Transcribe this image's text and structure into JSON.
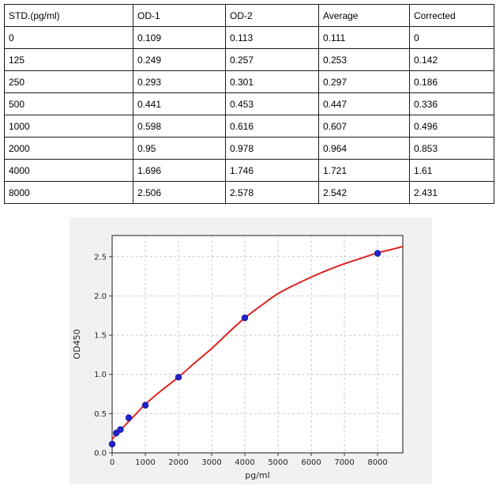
{
  "table": {
    "headers": [
      "STD.(pg/ml)",
      "OD-1",
      "OD-2",
      "Average",
      "Corrected"
    ],
    "rows": [
      [
        "0",
        "0.109",
        "0.113",
        "0.111",
        "0"
      ],
      [
        "125",
        "0.249",
        "0.257",
        "0.253",
        "0.142"
      ],
      [
        "250",
        "0.293",
        "0.301",
        "0.297",
        "0.186"
      ],
      [
        "500",
        "0.441",
        "0.453",
        "0.447",
        "0.336"
      ],
      [
        "1000",
        "0.598",
        "0.616",
        "0.607",
        "0.496"
      ],
      [
        "2000",
        "0.95",
        "0.978",
        "0.964",
        "0.853"
      ],
      [
        "4000",
        "1.696",
        "1.746",
        "1.721",
        "1.61"
      ],
      [
        "8000",
        "2.506",
        "2.578",
        "2.542",
        "2.431"
      ]
    ]
  },
  "chart_data": {
    "type": "scatter",
    "title": "",
    "xlabel": "pg/ml",
    "ylabel": "OD450",
    "xlim": [
      0,
      8760
    ],
    "ylim": [
      0,
      2.77
    ],
    "x_ticks": [
      0,
      1000,
      2000,
      3000,
      4000,
      5000,
      6000,
      7000,
      8000
    ],
    "x_tick_labels": [
      "0",
      "1000",
      "2000",
      "3000",
      "4000",
      "5000",
      "6000",
      "7000",
      "8000"
    ],
    "y_ticks": [
      0,
      0.5,
      1.0,
      1.5,
      2.0,
      2.5
    ],
    "y_tick_labels": [
      "0.0",
      "0.5",
      "1.0",
      "1.5",
      "2.0",
      "2.5"
    ],
    "grid": true,
    "legend": "none",
    "series": [
      {
        "name": "standard-points",
        "type": "scatter",
        "x": [
          0,
          125,
          250,
          500,
          1000,
          2000,
          4000,
          8000
        ],
        "y": [
          0.111,
          0.253,
          0.297,
          0.447,
          0.607,
          0.964,
          1.721,
          2.542
        ]
      },
      {
        "name": "fit-curve",
        "type": "line",
        "x": [
          0,
          250,
          500,
          750,
          1000,
          1500,
          2000,
          2500,
          3000,
          3500,
          4000,
          4500,
          5000,
          5500,
          6000,
          6500,
          7000,
          7500,
          8000,
          8400,
          8760
        ],
        "y": [
          0.175,
          0.29,
          0.4,
          0.51,
          0.62,
          0.8,
          0.965,
          1.15,
          1.33,
          1.53,
          1.72,
          1.88,
          2.03,
          2.14,
          2.24,
          2.33,
          2.41,
          2.48,
          2.55,
          2.59,
          2.63
        ]
      }
    ],
    "colors": {
      "point": "#2222cc",
      "point_edge": "#15158f",
      "curve": "#dd2222",
      "figure_bg": "#f1f1f1",
      "plot_bg": "#ffffff",
      "grid": "#c9c9c9",
      "spine": "#3c3c3c",
      "text": "#262626"
    }
  }
}
